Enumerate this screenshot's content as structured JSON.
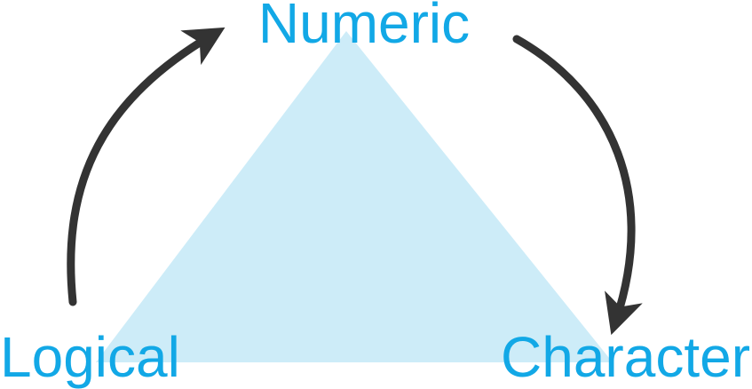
{
  "diagram": {
    "nodes": {
      "top": "Numeric",
      "left": "Logical",
      "right": "Character"
    },
    "colors": {
      "triangle_fill": "#cdecf8",
      "label": "#12a8e6",
      "arrow": "#333333"
    },
    "arrows": [
      {
        "from": "Logical",
        "to": "Numeric"
      },
      {
        "from": "Numeric",
        "to": "Character"
      }
    ]
  }
}
